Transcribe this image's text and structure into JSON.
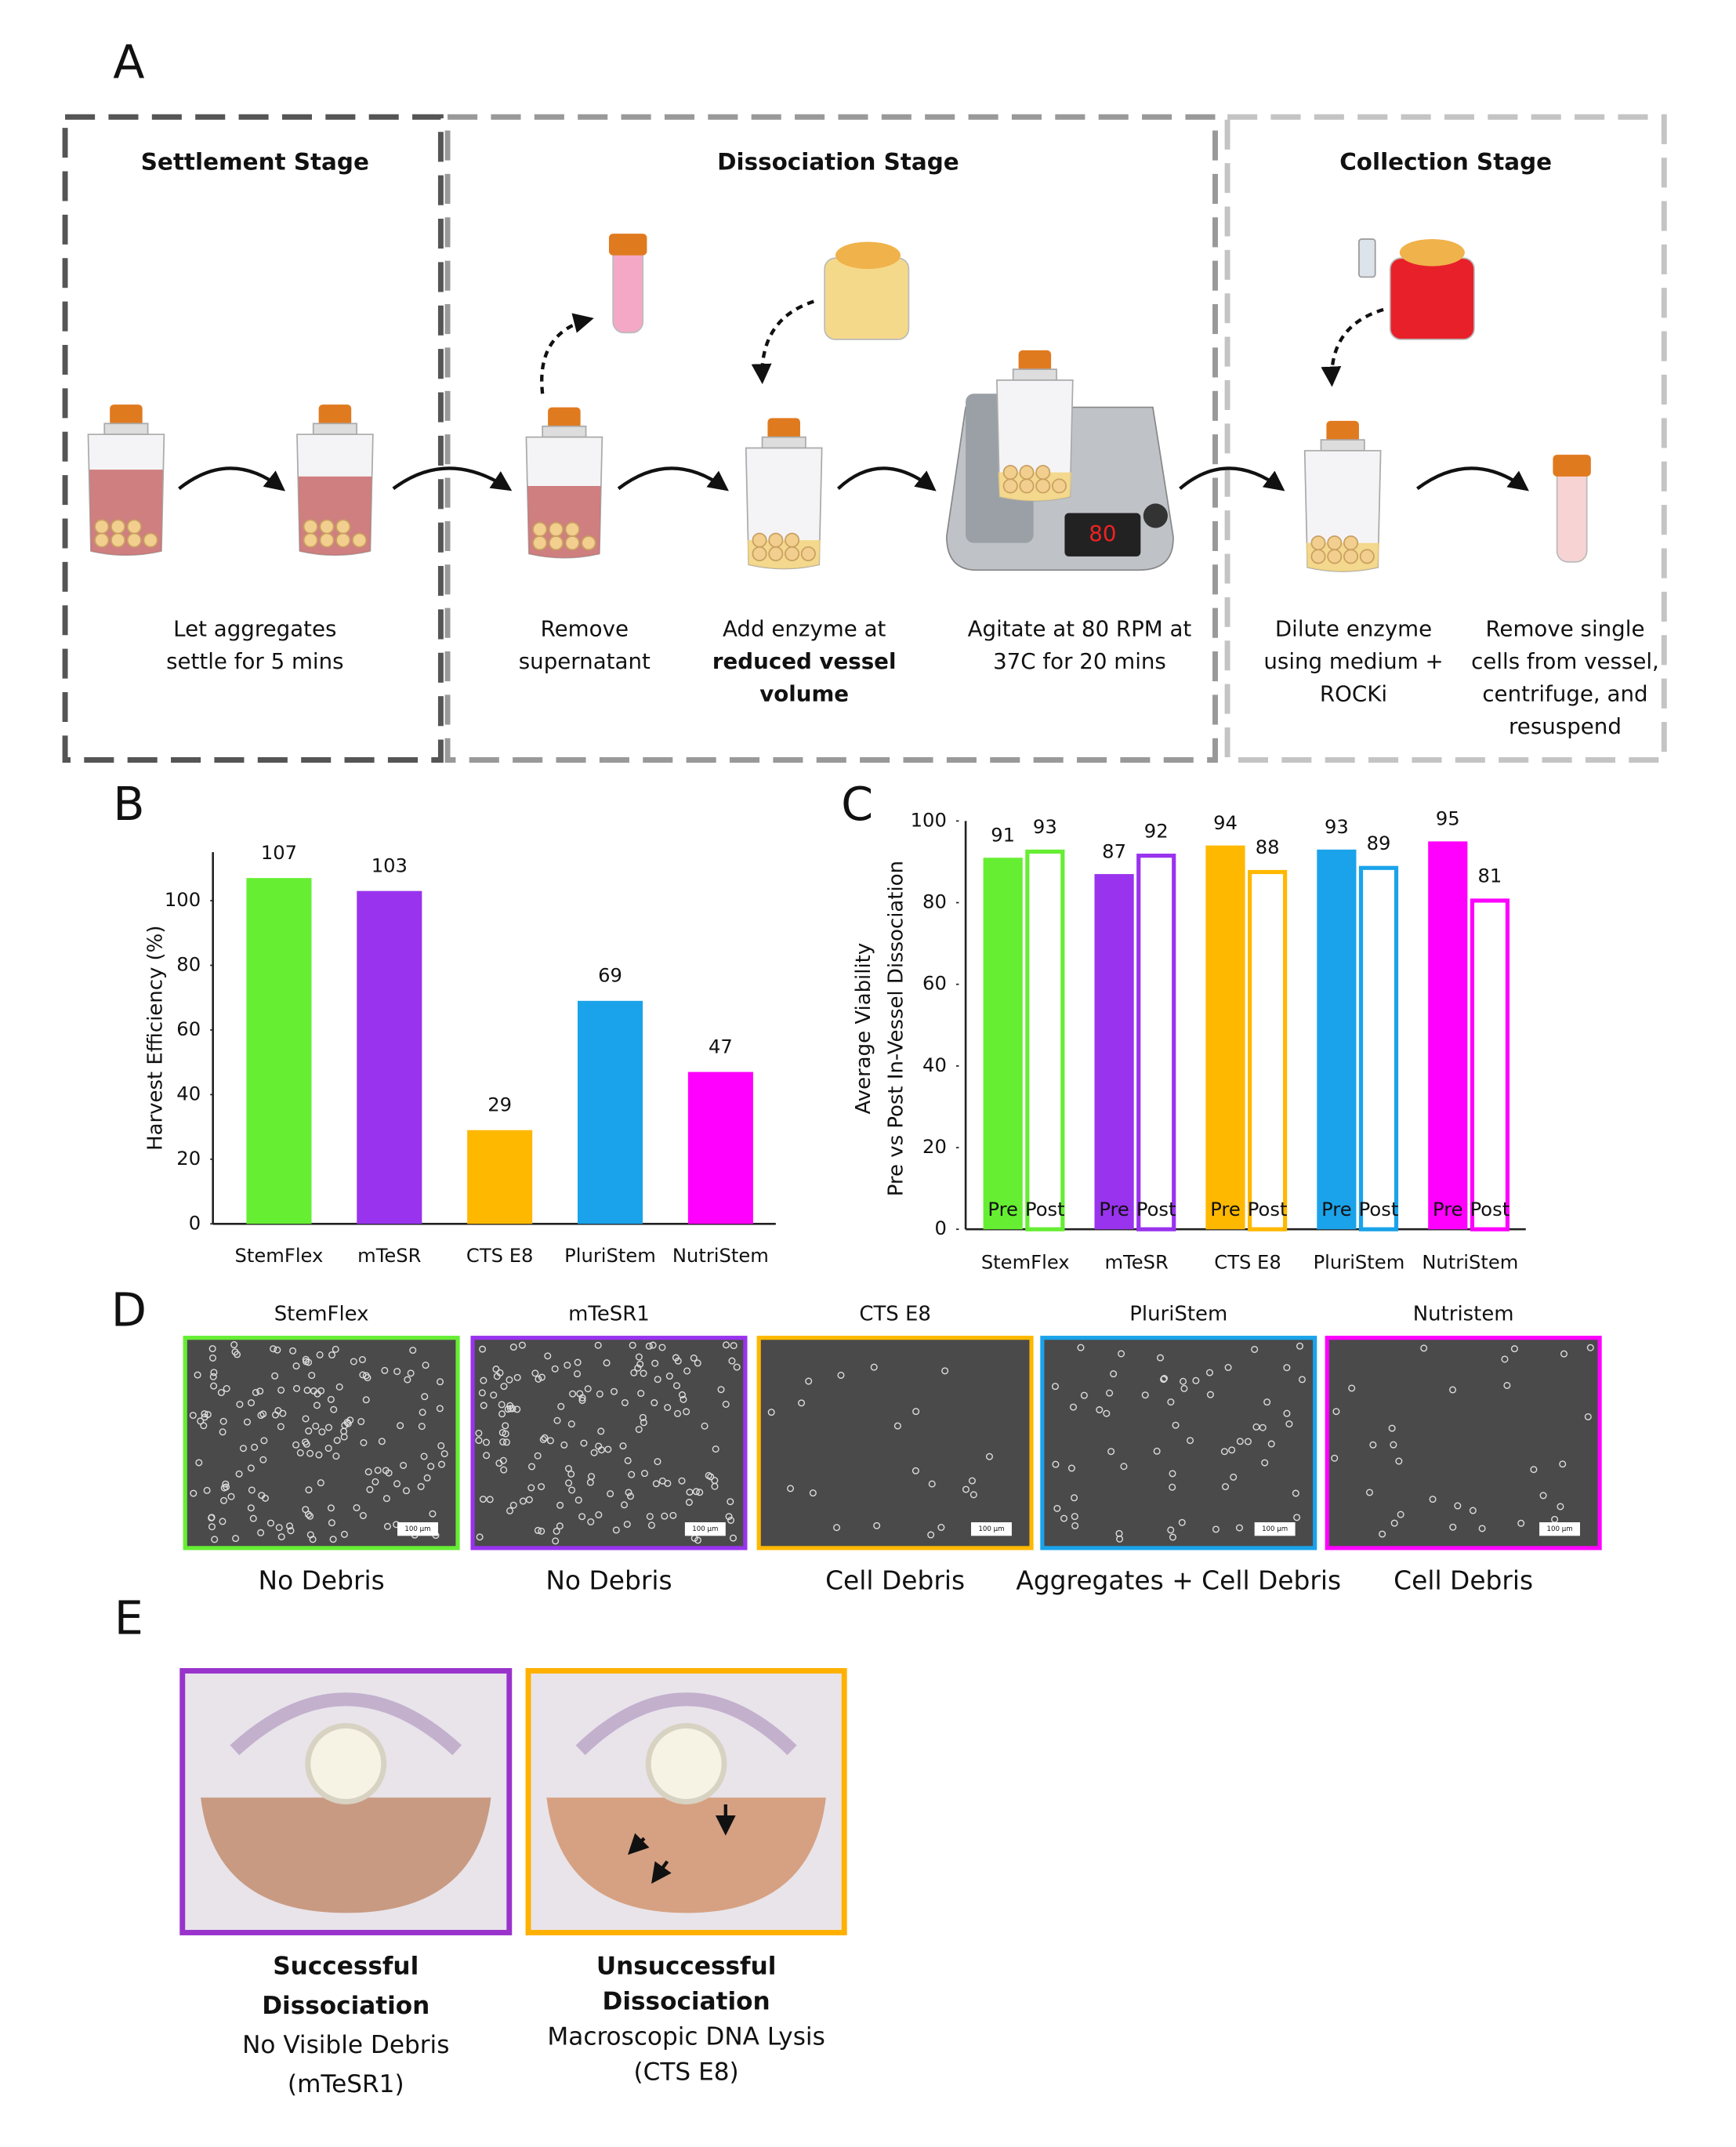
{
  "panel_labels": [
    "A",
    "B",
    "C",
    "D",
    "E"
  ],
  "panel_a": {
    "stages": [
      "Settlement Stage",
      "Dissociation Stage",
      "Collection Stage"
    ],
    "steps": [
      {
        "lines": [
          {
            "text": "Let aggregates",
            "bold": false
          },
          {
            "text": "settle for 5 mins",
            "bold": false
          }
        ]
      },
      {
        "lines": [
          {
            "text": "Remove",
            "bold": false
          },
          {
            "text": "supernatant",
            "bold": false
          }
        ]
      },
      {
        "lines": [
          {
            "text": "Add enzyme at",
            "bold": false
          },
          {
            "text": "reduced vessel",
            "bold": true
          },
          {
            "text": "volume",
            "bold": true
          }
        ]
      },
      {
        "lines": [
          {
            "text": "Agitate at 80 RPM at",
            "bold": false
          },
          {
            "text": "37C for 20 mins",
            "bold": false
          }
        ]
      },
      {
        "lines": [
          {
            "text": "Dilute enzyme",
            "bold": false
          },
          {
            "text": "using medium +",
            "bold": false
          },
          {
            "text": "ROCKi",
            "bold": false
          }
        ]
      },
      {
        "lines": [
          {
            "text": "Remove single",
            "bold": false
          },
          {
            "text": "cells from vessel,",
            "bold": false
          },
          {
            "text": "centrifuge, and",
            "bold": false
          },
          {
            "text": "resuspend",
            "bold": false
          }
        ]
      }
    ],
    "display": "80"
  },
  "chart_data": [
    {
      "type": "bar",
      "y_label": "Harvest Efficiency (%)",
      "categories": [
        "StemFlex",
        "mTeSR",
        "CTS E8",
        "PluriStem",
        "NutriStem"
      ],
      "values": [
        107,
        103,
        29,
        69,
        47
      ],
      "colors": [
        "#66ee33",
        "#9933ee",
        "#ffb800",
        "#1aa3ea",
        "#ff00ff"
      ],
      "ylim": [
        0,
        115
      ],
      "yticks": [
        0,
        20,
        40,
        60,
        80,
        100
      ]
    },
    {
      "type": "grouped-bar",
      "y_label": [
        "Average Viability",
        "Pre vs Post In-Vessel Dissociation"
      ],
      "categories": [
        "StemFlex",
        "mTeSR",
        "CTS E8",
        "PluriStem",
        "NutriStem"
      ],
      "series": [
        {
          "name": "Pre",
          "style": "filled",
          "values": [
            91,
            87,
            94,
            93,
            95
          ]
        },
        {
          "name": "Post",
          "style": "outline",
          "values": [
            93,
            92,
            88,
            89,
            81
          ]
        }
      ],
      "colors": [
        "#66ee33",
        "#9933ee",
        "#ffb800",
        "#1aa3ea",
        "#ff00ff"
      ],
      "ylim": [
        0,
        100
      ],
      "yticks": [
        0,
        20,
        40,
        60,
        80,
        100
      ]
    }
  ],
  "panel_d": {
    "images": [
      {
        "title": "StemFlex",
        "caption": "No Debris",
        "color": "#66ee33",
        "scale_bar": "100 µm"
      },
      {
        "title": "mTeSR1",
        "caption": "No Debris",
        "color": "#9933ee",
        "scale_bar": "100 µm"
      },
      {
        "title": "CTS E8",
        "caption": "Cell Debris",
        "color": "#ffb800",
        "scale_bar": "100 µm"
      },
      {
        "title": "PluriStem",
        "caption": "Aggregates + Cell Debris",
        "color": "#1aa3ea",
        "scale_bar": "100 µm"
      },
      {
        "title": "Nutristem",
        "caption": "Cell Debris",
        "color": "#ff00ff",
        "scale_bar": "100 µm"
      }
    ]
  },
  "panel_e": {
    "photos": [
      {
        "title": [
          "Successful",
          "Dissociation"
        ],
        "detail": "No Visible Debris",
        "medium": "(mTeSR1)",
        "color": "#9933cc"
      },
      {
        "title": [
          "Unsuccessful",
          "Dissociation"
        ],
        "detail": "Macroscopic DNA Lysis",
        "medium": "(CTS E8)",
        "color": "#ffb000"
      }
    ]
  }
}
